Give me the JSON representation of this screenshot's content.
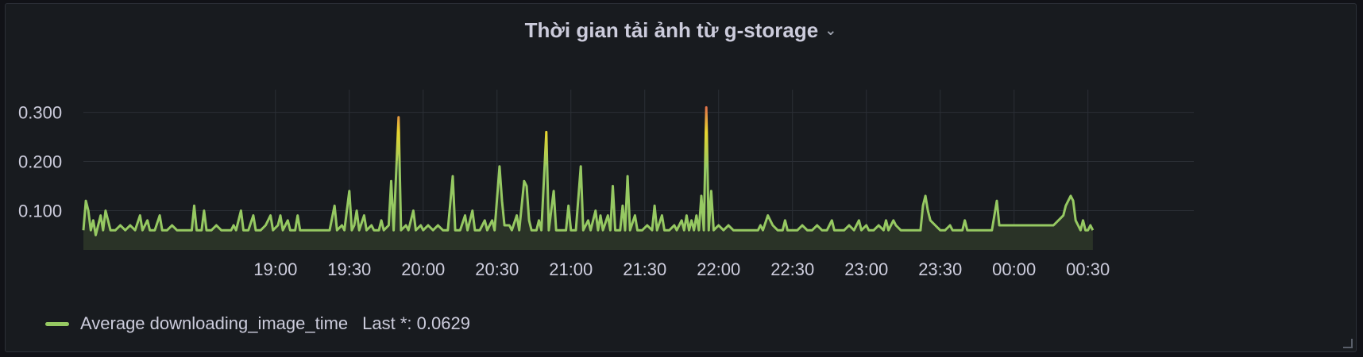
{
  "panel": {
    "title": "Thời gian tải ảnh từ g-storage",
    "menu_icon": "chevron-down-icon"
  },
  "colors": {
    "line_low": "#96c962",
    "line_mid": "#e8d62f",
    "line_high": "#e05353",
    "grid": "#2b2f36",
    "fill": "#2a3327"
  },
  "chart_data": {
    "type": "line",
    "title": "Thời gian tải ảnh từ g-storage",
    "xlabel": "",
    "ylabel": "",
    "y_ticks": [
      "0.100",
      "0.200",
      "0.300"
    ],
    "x_ticks": [
      "19:00",
      "19:30",
      "20:00",
      "20:30",
      "21:00",
      "21:30",
      "22:00",
      "22:30",
      "23:00",
      "23:30",
      "00:00",
      "00:30"
    ],
    "ylim": [
      0.02,
      0.33
    ],
    "x_range_minutes": [
      1062,
      1513
    ],
    "grid": true,
    "legend_position": "bottom-left",
    "series": [
      {
        "name": "Average downloading_image_time",
        "last_label": "Last *: 0.0629",
        "points": [
          [
            1062,
            0.06
          ],
          [
            1063,
            0.12
          ],
          [
            1064,
            0.1
          ],
          [
            1065,
            0.06
          ],
          [
            1066,
            0.08
          ],
          [
            1067,
            0.05
          ],
          [
            1068,
            0.07
          ],
          [
            1069,
            0.09
          ],
          [
            1070,
            0.06
          ],
          [
            1071,
            0.1
          ],
          [
            1072,
            0.08
          ],
          [
            1073,
            0.06
          ],
          [
            1075,
            0.06
          ],
          [
            1077,
            0.07
          ],
          [
            1079,
            0.06
          ],
          [
            1081,
            0.07
          ],
          [
            1083,
            0.06
          ],
          [
            1085,
            0.09
          ],
          [
            1086,
            0.06
          ],
          [
            1088,
            0.08
          ],
          [
            1089,
            0.06
          ],
          [
            1091,
            0.06
          ],
          [
            1093,
            0.09
          ],
          [
            1094,
            0.06
          ],
          [
            1096,
            0.06
          ],
          [
            1098,
            0.07
          ],
          [
            1100,
            0.06
          ],
          [
            1102,
            0.06
          ],
          [
            1104,
            0.06
          ],
          [
            1106,
            0.06
          ],
          [
            1107,
            0.11
          ],
          [
            1108,
            0.06
          ],
          [
            1110,
            0.06
          ],
          [
            1111,
            0.1
          ],
          [
            1112,
            0.06
          ],
          [
            1114,
            0.06
          ],
          [
            1116,
            0.07
          ],
          [
            1118,
            0.06
          ],
          [
            1120,
            0.06
          ],
          [
            1122,
            0.06
          ],
          [
            1123,
            0.07
          ],
          [
            1124,
            0.06
          ],
          [
            1126,
            0.1
          ],
          [
            1127,
            0.06
          ],
          [
            1129,
            0.06
          ],
          [
            1131,
            0.09
          ],
          [
            1132,
            0.06
          ],
          [
            1134,
            0.06
          ],
          [
            1136,
            0.07
          ],
          [
            1138,
            0.09
          ],
          [
            1139,
            0.06
          ],
          [
            1141,
            0.07
          ],
          [
            1142,
            0.09
          ],
          [
            1143,
            0.06
          ],
          [
            1145,
            0.08
          ],
          [
            1146,
            0.06
          ],
          [
            1148,
            0.06
          ],
          [
            1149,
            0.09
          ],
          [
            1150,
            0.06
          ],
          [
            1152,
            0.06
          ],
          [
            1154,
            0.06
          ],
          [
            1156,
            0.06
          ],
          [
            1158,
            0.06
          ],
          [
            1160,
            0.06
          ],
          [
            1162,
            0.06
          ],
          [
            1164,
            0.11
          ],
          [
            1165,
            0.06
          ],
          [
            1167,
            0.07
          ],
          [
            1168,
            0.06
          ],
          [
            1170,
            0.14
          ],
          [
            1171,
            0.06
          ],
          [
            1172,
            0.07
          ],
          [
            1173,
            0.1
          ],
          [
            1174,
            0.06
          ],
          [
            1176,
            0.09
          ],
          [
            1177,
            0.06
          ],
          [
            1179,
            0.07
          ],
          [
            1180,
            0.06
          ],
          [
            1182,
            0.06
          ],
          [
            1183,
            0.08
          ],
          [
            1184,
            0.06
          ],
          [
            1186,
            0.07
          ],
          [
            1187,
            0.16
          ],
          [
            1188,
            0.06
          ],
          [
            1190,
            0.29
          ],
          [
            1191,
            0.06
          ],
          [
            1193,
            0.07
          ],
          [
            1194,
            0.06
          ],
          [
            1196,
            0.1
          ],
          [
            1197,
            0.06
          ],
          [
            1199,
            0.07
          ],
          [
            1200,
            0.06
          ],
          [
            1202,
            0.07
          ],
          [
            1204,
            0.06
          ],
          [
            1206,
            0.07
          ],
          [
            1208,
            0.06
          ],
          [
            1210,
            0.06
          ],
          [
            1212,
            0.17
          ],
          [
            1213,
            0.06
          ],
          [
            1215,
            0.06
          ],
          [
            1217,
            0.09
          ],
          [
            1218,
            0.06
          ],
          [
            1220,
            0.1
          ],
          [
            1221,
            0.06
          ],
          [
            1223,
            0.06
          ],
          [
            1225,
            0.08
          ],
          [
            1226,
            0.06
          ],
          [
            1228,
            0.08
          ],
          [
            1229,
            0.06
          ],
          [
            1231,
            0.19
          ],
          [
            1232,
            0.12
          ],
          [
            1233,
            0.07
          ],
          [
            1235,
            0.07
          ],
          [
            1236,
            0.06
          ],
          [
            1238,
            0.09
          ],
          [
            1239,
            0.06
          ],
          [
            1241,
            0.16
          ],
          [
            1242,
            0.15
          ],
          [
            1243,
            0.08
          ],
          [
            1244,
            0.06
          ],
          [
            1246,
            0.06
          ],
          [
            1247,
            0.08
          ],
          [
            1248,
            0.06
          ],
          [
            1250,
            0.26
          ],
          [
            1251,
            0.06
          ],
          [
            1253,
            0.14
          ],
          [
            1254,
            0.06
          ],
          [
            1256,
            0.06
          ],
          [
            1258,
            0.06
          ],
          [
            1259,
            0.11
          ],
          [
            1260,
            0.06
          ],
          [
            1262,
            0.06
          ],
          [
            1264,
            0.19
          ],
          [
            1265,
            0.06
          ],
          [
            1267,
            0.08
          ],
          [
            1268,
            0.06
          ],
          [
            1270,
            0.1
          ],
          [
            1271,
            0.06
          ],
          [
            1272,
            0.09
          ],
          [
            1273,
            0.06
          ],
          [
            1275,
            0.09
          ],
          [
            1276,
            0.06
          ],
          [
            1277,
            0.15
          ],
          [
            1278,
            0.06
          ],
          [
            1280,
            0.06
          ],
          [
            1281,
            0.11
          ],
          [
            1282,
            0.06
          ],
          [
            1283,
            0.17
          ],
          [
            1284,
            0.06
          ],
          [
            1286,
            0.09
          ],
          [
            1287,
            0.06
          ],
          [
            1289,
            0.06
          ],
          [
            1291,
            0.07
          ],
          [
            1293,
            0.06
          ],
          [
            1294,
            0.11
          ],
          [
            1295,
            0.06
          ],
          [
            1297,
            0.09
          ],
          [
            1298,
            0.06
          ],
          [
            1300,
            0.06
          ],
          [
            1302,
            0.07
          ],
          [
            1303,
            0.06
          ],
          [
            1305,
            0.08
          ],
          [
            1306,
            0.06
          ],
          [
            1307,
            0.09
          ],
          [
            1308,
            0.06
          ],
          [
            1309,
            0.08
          ],
          [
            1310,
            0.06
          ],
          [
            1311,
            0.09
          ],
          [
            1312,
            0.06
          ],
          [
            1313,
            0.13
          ],
          [
            1314,
            0.06
          ],
          [
            1315,
            0.31
          ],
          [
            1316,
            0.06
          ],
          [
            1317,
            0.14
          ],
          [
            1318,
            0.06
          ],
          [
            1320,
            0.07
          ],
          [
            1322,
            0.06
          ],
          [
            1324,
            0.07
          ],
          [
            1326,
            0.06
          ],
          [
            1328,
            0.06
          ],
          [
            1330,
            0.06
          ],
          [
            1332,
            0.06
          ],
          [
            1334,
            0.06
          ],
          [
            1336,
            0.06
          ],
          [
            1337,
            0.07
          ],
          [
            1338,
            0.06
          ],
          [
            1340,
            0.09
          ],
          [
            1341,
            0.08
          ],
          [
            1342,
            0.07
          ],
          [
            1344,
            0.06
          ],
          [
            1346,
            0.06
          ],
          [
            1347,
            0.08
          ],
          [
            1348,
            0.06
          ],
          [
            1350,
            0.06
          ],
          [
            1352,
            0.06
          ],
          [
            1354,
            0.07
          ],
          [
            1356,
            0.06
          ],
          [
            1358,
            0.06
          ],
          [
            1360,
            0.07
          ],
          [
            1362,
            0.06
          ],
          [
            1364,
            0.06
          ],
          [
            1366,
            0.08
          ],
          [
            1367,
            0.06
          ],
          [
            1369,
            0.06
          ],
          [
            1371,
            0.06
          ],
          [
            1373,
            0.07
          ],
          [
            1375,
            0.06
          ],
          [
            1377,
            0.08
          ],
          [
            1378,
            0.06
          ],
          [
            1380,
            0.07
          ],
          [
            1381,
            0.06
          ],
          [
            1383,
            0.06
          ],
          [
            1385,
            0.07
          ],
          [
            1387,
            0.06
          ],
          [
            1388,
            0.08
          ],
          [
            1389,
            0.06
          ],
          [
            1391,
            0.08
          ],
          [
            1392,
            0.07
          ],
          [
            1394,
            0.06
          ],
          [
            1396,
            0.06
          ],
          [
            1398,
            0.06
          ],
          [
            1400,
            0.06
          ],
          [
            1402,
            0.06
          ],
          [
            1403,
            0.11
          ],
          [
            1404,
            0.13
          ],
          [
            1405,
            0.1
          ],
          [
            1406,
            0.08
          ],
          [
            1408,
            0.07
          ],
          [
            1410,
            0.06
          ],
          [
            1412,
            0.06
          ],
          [
            1414,
            0.07
          ],
          [
            1415,
            0.06
          ],
          [
            1417,
            0.06
          ],
          [
            1419,
            0.06
          ],
          [
            1420,
            0.08
          ],
          [
            1421,
            0.06
          ],
          [
            1423,
            0.06
          ],
          [
            1425,
            0.06
          ],
          [
            1427,
            0.06
          ],
          [
            1429,
            0.06
          ],
          [
            1431,
            0.06
          ],
          [
            1433,
            0.12
          ],
          [
            1434,
            0.07
          ],
          [
            1436,
            0.07
          ],
          [
            1438,
            0.07
          ],
          [
            1440,
            0.07
          ],
          [
            1442,
            0.07
          ],
          [
            1444,
            0.07
          ],
          [
            1446,
            0.07
          ],
          [
            1448,
            0.07
          ],
          [
            1450,
            0.07
          ],
          [
            1452,
            0.07
          ],
          [
            1454,
            0.07
          ],
          [
            1456,
            0.07
          ],
          [
            1458,
            0.08
          ],
          [
            1460,
            0.09
          ],
          [
            1461,
            0.11
          ],
          [
            1462,
            0.12
          ],
          [
            1463,
            0.13
          ],
          [
            1464,
            0.12
          ],
          [
            1465,
            0.08
          ],
          [
            1466,
            0.07
          ],
          [
            1467,
            0.06
          ],
          [
            1468,
            0.08
          ],
          [
            1469,
            0.06
          ],
          [
            1470,
            0.06
          ],
          [
            1471,
            0.07
          ],
          [
            1472,
            0.06
          ]
        ]
      }
    ]
  }
}
